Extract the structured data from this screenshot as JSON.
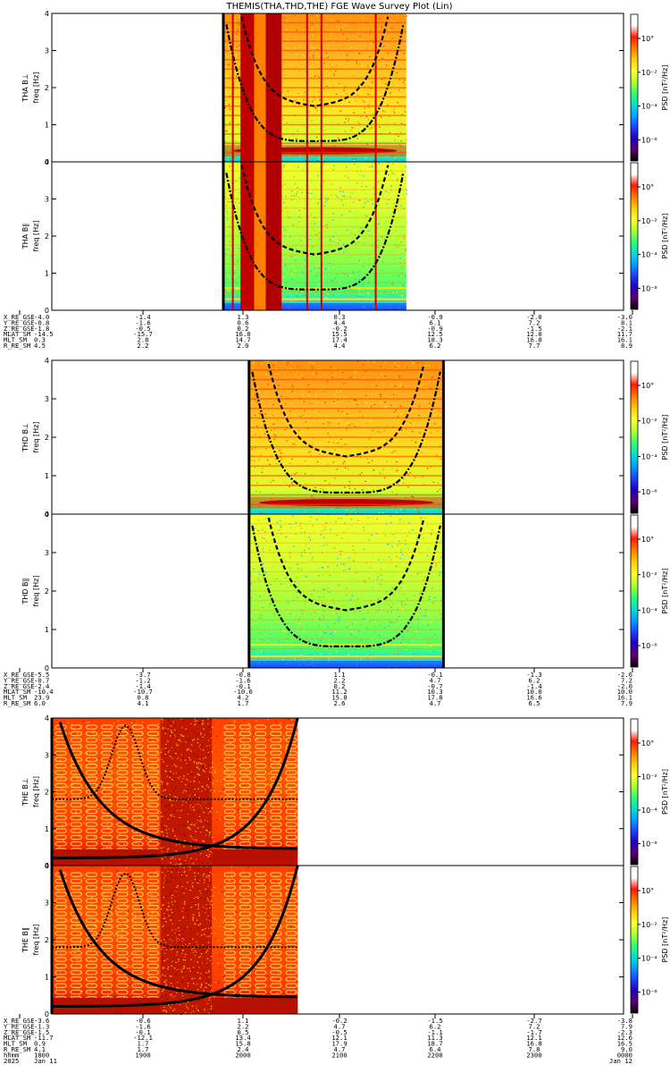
{
  "chart_data": {
    "type": "heatmap",
    "title": "THEMIS(THA,THD,THE)  FGE Wave Survey Plot (Lin)",
    "y_ticks": [
      "0",
      "1",
      "2",
      "3",
      "4"
    ],
    "ylim": [
      0,
      4
    ],
    "colorbar": {
      "label": "PSD [nT²/Hz]",
      "ticks": [
        "10°",
        "10⁻²",
        "10⁻⁴",
        "10⁻⁶"
      ],
      "colors": [
        "#ffffff",
        "#ffffff",
        "#ff1900",
        "#ff7a00",
        "#ffcc00",
        "#ffff30",
        "#b0ff30",
        "#30ff70",
        "#00e0d0",
        "#00a0ff",
        "#2040ff",
        "#2000c0",
        "#600070",
        "#000000"
      ]
    },
    "panels": [
      {
        "probe": "THA",
        "line1": "THA B⊥",
        "line2": "freq [Hz]",
        "data_x": [
          0.3,
          0.62
        ],
        "style": "a_perp",
        "dark_band": [
          0.33,
          0.41
        ],
        "extra_vlines": [
          0.315,
          0.445,
          0.47,
          0.565
        ]
      },
      {
        "probe": "THA",
        "line1": "THA B∥",
        "line2": "freq [Hz]",
        "data_x": [
          0.3,
          0.62
        ],
        "style": "a_par",
        "dark_band": [
          0.33,
          0.41
        ],
        "extra_vlines": [
          0.315,
          0.445,
          0.47,
          0.565
        ]
      },
      {
        "probe": "THD",
        "line1": "THD B⊥",
        "line2": "freq [Hz]",
        "data_x": [
          0.345,
          0.685
        ],
        "style": "d_perp",
        "dark_band": null,
        "extra_vlines": []
      },
      {
        "probe": "THD",
        "line1": "THD B∥",
        "line2": "freq [Hz]",
        "data_x": [
          0.345,
          0.685
        ],
        "style": "d_par",
        "dark_band": null,
        "extra_vlines": []
      },
      {
        "probe": "THE",
        "line1": "THE B⊥",
        "line2": "freq [Hz]",
        "data_x": [
          0.0,
          0.43
        ],
        "style": "e",
        "dark_band": [
          0.19,
          0.28
        ],
        "extra_vlines": []
      },
      {
        "probe": "THE",
        "line1": "THE B∥",
        "line2": "freq [Hz]",
        "data_x": [
          0.0,
          0.43
        ],
        "style": "e",
        "dark_band": [
          0.19,
          0.28
        ],
        "extra_vlines": []
      }
    ],
    "ephemeris": [
      {
        "labels": [
          "X_RE_GSE",
          "Y_RE_GSE",
          "Z_RE_GSE",
          "MLAT_SM",
          "MLT_SM",
          "R_RE_SM"
        ],
        "rows": [
          [
            "-4.0",
            "-1.4",
            "1.3",
            "0.3",
            "-0.9",
            "-2.0",
            "-3.0"
          ],
          [
            "-0.8",
            "-1.6",
            "0.6",
            "4.4",
            "6.1",
            "7.2",
            "8.1"
          ],
          [
            "-1.8",
            "-0.5",
            "0.2",
            "-0.2",
            "-0.9",
            "-1.5",
            "-2.1"
          ],
          [
            "-14.5",
            "-15.7",
            "16.0",
            "15.5",
            "12.5",
            "12.0",
            "11.7"
          ],
          [
            "0.3",
            "2.8",
            "14.7",
            "17.4",
            "18.3",
            "16.8",
            "16.1"
          ],
          [
            "4.5",
            "2.2",
            "2.0",
            "4.4",
            "6.2",
            "7.7",
            "8.9"
          ]
        ]
      },
      {
        "labels": [
          "X_RE_GSE",
          "Y_RE_GSE",
          "Z_RE_GSE",
          "MLAT_SM",
          "MLT_SM",
          "R_RE_SM"
        ],
        "rows": [
          [
            "-5.5",
            "-3.7",
            "-0.8",
            "1.1",
            "-0.1",
            "-1.3",
            "-2.6"
          ],
          [
            "-0.7",
            "-1.2",
            "-1.6",
            "2.2",
            "4.7",
            "6.2",
            "7.2"
          ],
          [
            "-2.4",
            "-1.4",
            "-0.1",
            "0.2",
            "-0.7",
            "-1.4",
            "-2.0"
          ],
          [
            "-10.4",
            "-10.7",
            "-10.6",
            "11.2",
            "10.3",
            "10.0",
            "10.0"
          ],
          [
            "23.9",
            "0.8",
            "4.2",
            "15.8",
            "17.8",
            "16.6",
            "16.1"
          ],
          [
            "6.0",
            "4.1",
            "1.7",
            "2.6",
            "4.7",
            "6.5",
            "7.9"
          ]
        ]
      },
      {
        "labels": [
          "X_RE_GSE",
          "Y_RE_GSE",
          "Z_RE_GSE",
          "MLAT_SM",
          "MLT_SM",
          "R_RE_SM",
          "hhmm",
          "2025"
        ],
        "rows": [
          [
            "-3.6",
            "-0.6",
            "1.1",
            "-0.2",
            "-1.5",
            "-2.7",
            "-3.8"
          ],
          [
            "-1.3",
            "-1.6",
            "2.2",
            "4.7",
            "6.2",
            "7.2",
            "7.9"
          ],
          [
            "-1.5",
            "-0.1",
            "0.5",
            "-0.5",
            "-1.1",
            "-1.7",
            "-2.3"
          ],
          [
            "-11.7",
            "-12.1",
            "13.4",
            "12.1",
            "11.3",
            "12.1",
            "12.6"
          ],
          [
            "0.9",
            "1.7",
            "15.8",
            "17.9",
            "18.7",
            "16.8",
            "16.5"
          ],
          [
            "4.1",
            "1.7",
            "2.4",
            "4.7",
            "6.4",
            "7.8",
            "9.0"
          ],
          [
            "1800",
            "1900",
            "2000",
            "2100",
            "2200",
            "2300",
            "0000"
          ],
          [
            "Jan 11",
            "",
            "",
            "",
            "",
            "",
            "Jan 12"
          ]
        ]
      }
    ]
  }
}
